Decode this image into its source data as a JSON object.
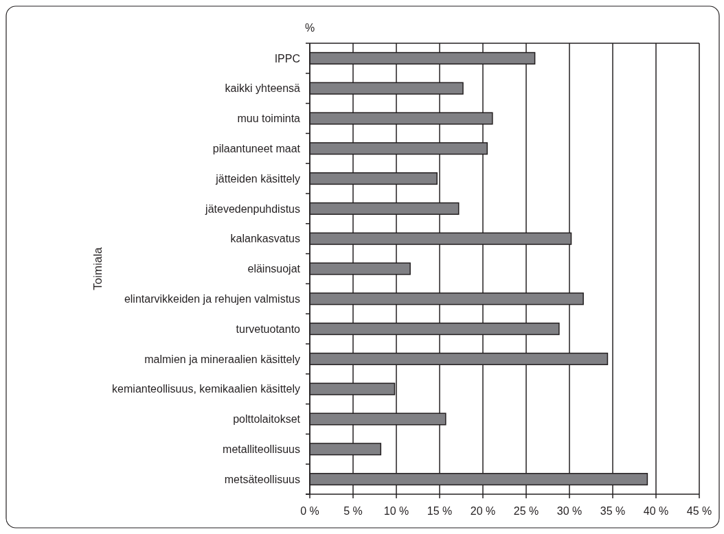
{
  "chart_data": {
    "type": "bar",
    "orientation": "horizontal",
    "xlabel": "%",
    "ylabel": "Toimiala",
    "categories": [
      "IPPC",
      "kaikki yhteensä",
      "muu toiminta",
      "pilaantuneet maat",
      "jätteiden käsittely",
      "jätevedenpuhdistus",
      "kalankasvatus",
      "eläinsuojat",
      "elintarvikkeiden ja rehujen valmistus",
      "turvetuotanto",
      "malmien ja mineraalien käsittely",
      "kemianteollisuus, kemikaalien käsittely",
      "polttolaitokset",
      "metalliteollisuus",
      "metsäteollisuus"
    ],
    "values": [
      26,
      17.7,
      21.1,
      20.5,
      14.7,
      17.2,
      30.2,
      11.6,
      31.6,
      28.8,
      34.4,
      9.8,
      15.7,
      8.2,
      39.0
    ],
    "color": "#808084",
    "xlim": [
      0,
      45
    ],
    "xticks": [
      {
        "value": 0,
        "label": "0 %"
      },
      {
        "value": 5,
        "label": "5 %"
      },
      {
        "value": 10,
        "label": "10 %"
      },
      {
        "value": 15,
        "label": "15 %"
      },
      {
        "value": 20,
        "label": "20 %"
      },
      {
        "value": 25,
        "label": "25 %"
      },
      {
        "value": 30,
        "label": "30 %"
      },
      {
        "value": 35,
        "label": "35 %"
      },
      {
        "value": 40,
        "label": "40 %"
      },
      {
        "value": 45,
        "label": "45 %"
      }
    ],
    "grid": "x"
  }
}
